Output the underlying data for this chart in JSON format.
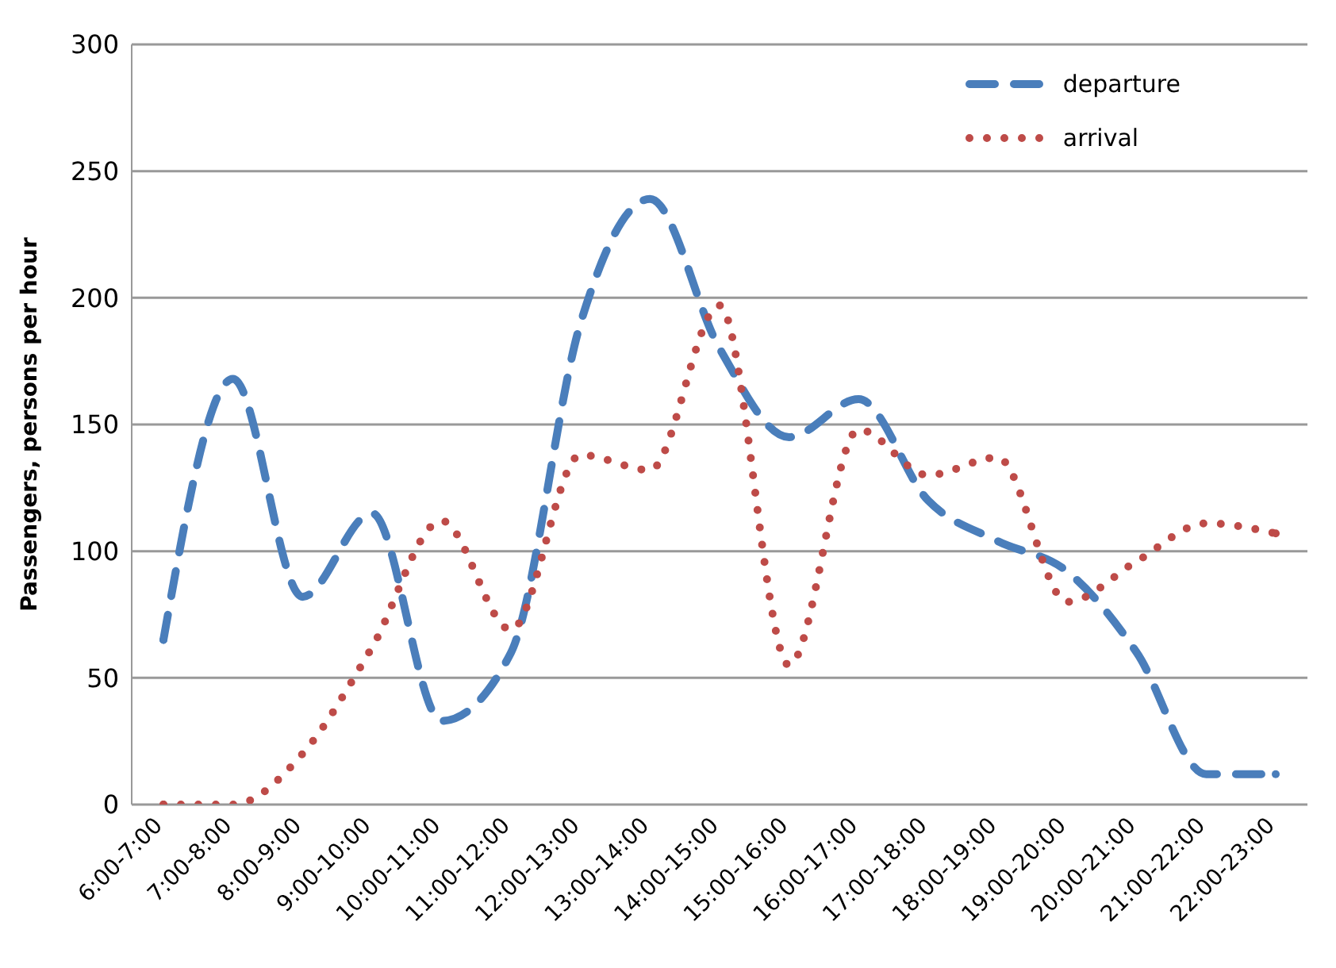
{
  "chart_data": {
    "type": "line",
    "ylabel": "Passengers, persons per hour",
    "categories": [
      "6:00-7:00",
      "7:00-8:00",
      "8:00-9:00",
      "9:00-10:00",
      "10:00-11:00",
      "11:00-12:00",
      "12:00-13:00",
      "13:00-14:00",
      "14:00-15:00",
      "15:00-16:00",
      "16:00-17:00",
      "17:00-18:00",
      "18:00-19:00",
      "19:00-20:00",
      "20:00-21:00",
      "21:00-22:00",
      "22:00-23:00"
    ],
    "series": [
      {
        "name": "departure",
        "color": "#4a7ebb",
        "line_style": "dashed",
        "values": [
          65,
          168,
          82,
          115,
          33,
          60,
          190,
          239,
          180,
          145,
          160,
          120,
          104,
          92,
          60,
          12,
          12
        ]
      },
      {
        "name": "arrival",
        "color": "#be4b48",
        "line_style": "dotted",
        "values": [
          0,
          0,
          20,
          62,
          112,
          69,
          138,
          132,
          197,
          55,
          148,
          130,
          137,
          80,
          96,
          111,
          107
        ]
      }
    ],
    "ylim": [
      0,
      300
    ],
    "yticks": [
      0,
      50,
      100,
      150,
      200,
      250,
      300
    ],
    "grid": "y",
    "legend": "top right",
    "marker": "none"
  }
}
